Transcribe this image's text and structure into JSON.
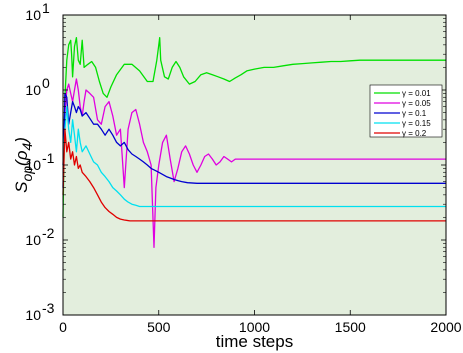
{
  "chart_data": {
    "type": "line",
    "title": "",
    "xlabel": "time steps",
    "ylabel": "S_op(ρ_4)",
    "ylabel_parts": {
      "S": "S",
      "sub": "op",
      "arg": "(ρ",
      "argsub": "4",
      "close": ")"
    },
    "xlim": [
      0,
      2000
    ],
    "ylim": [
      0.001,
      10
    ],
    "yscale": "log",
    "xticks": [
      0,
      500,
      1000,
      1500,
      2000
    ],
    "xtick_labels": [
      "0",
      "500",
      "1000",
      "1500",
      "2000"
    ],
    "yticks": [
      0.001,
      0.01,
      0.1,
      1,
      10
    ],
    "ytick_labels": [
      {
        "base": "10",
        "exp": "-3"
      },
      {
        "base": "10",
        "exp": "-2"
      },
      {
        "base": "10",
        "exp": "-1"
      },
      {
        "base": "10",
        "exp": "0"
      },
      {
        "base": "10",
        "exp": "1"
      }
    ],
    "grid": false,
    "background": "#e3eedd",
    "legend_position": "right",
    "series": [
      {
        "name": "γ = 0.01",
        "color": "#00e000",
        "points": [
          [
            0,
            0.02
          ],
          [
            10,
            0.8
          ],
          [
            20,
            2.5
          ],
          [
            30,
            4.0
          ],
          [
            40,
            4.6
          ],
          [
            45,
            3.0
          ],
          [
            50,
            1.5
          ],
          [
            60,
            3.8
          ],
          [
            70,
            5.0
          ],
          [
            80,
            2.5
          ],
          [
            90,
            2.2
          ],
          [
            100,
            4.6
          ],
          [
            110,
            2.0
          ],
          [
            130,
            2.2
          ],
          [
            150,
            2.4
          ],
          [
            170,
            2.0
          ],
          [
            190,
            1.3
          ],
          [
            210,
            0.9
          ],
          [
            230,
            0.8
          ],
          [
            250,
            1.1
          ],
          [
            280,
            1.6
          ],
          [
            320,
            2.2
          ],
          [
            360,
            2.2
          ],
          [
            400,
            1.8
          ],
          [
            440,
            1.3
          ],
          [
            470,
            1.3
          ],
          [
            490,
            2.5
          ],
          [
            500,
            4.0
          ],
          [
            505,
            5.0
          ],
          [
            510,
            2.5
          ],
          [
            530,
            1.5
          ],
          [
            550,
            1.4
          ],
          [
            570,
            2.0
          ],
          [
            590,
            2.4
          ],
          [
            610,
            2.0
          ],
          [
            630,
            1.5
          ],
          [
            660,
            1.2
          ],
          [
            690,
            1.3
          ],
          [
            720,
            1.6
          ],
          [
            750,
            1.7
          ],
          [
            780,
            1.6
          ],
          [
            810,
            1.5
          ],
          [
            840,
            1.4
          ],
          [
            870,
            1.3
          ],
          [
            900,
            1.45
          ],
          [
            930,
            1.6
          ],
          [
            960,
            1.8
          ],
          [
            1000,
            1.9
          ],
          [
            1050,
            2.0
          ],
          [
            1100,
            2.0
          ],
          [
            1150,
            2.1
          ],
          [
            1200,
            2.2
          ],
          [
            1250,
            2.25
          ],
          [
            1300,
            2.3
          ],
          [
            1350,
            2.35
          ],
          [
            1400,
            2.4
          ],
          [
            1450,
            2.4
          ],
          [
            1500,
            2.45
          ],
          [
            1550,
            2.5
          ],
          [
            1600,
            2.5
          ],
          [
            1650,
            2.5
          ],
          [
            1700,
            2.5
          ],
          [
            1750,
            2.5
          ],
          [
            1800,
            2.5
          ],
          [
            1850,
            2.5
          ],
          [
            1900,
            2.5
          ],
          [
            1950,
            2.5
          ],
          [
            2000,
            2.5
          ]
        ]
      },
      {
        "name": "γ = 0.05",
        "color": "#e000e0",
        "points": [
          [
            0,
            0.1
          ],
          [
            10,
            0.5
          ],
          [
            20,
            1.0
          ],
          [
            30,
            1.2
          ],
          [
            40,
            0.9
          ],
          [
            50,
            0.7
          ],
          [
            60,
            1.0
          ],
          [
            70,
            1.4
          ],
          [
            80,
            1.0
          ],
          [
            90,
            0.6
          ],
          [
            100,
            0.45
          ],
          [
            110,
            0.7
          ],
          [
            120,
            1.0
          ],
          [
            140,
            0.9
          ],
          [
            160,
            0.8
          ],
          [
            180,
            0.4
          ],
          [
            200,
            0.35
          ],
          [
            220,
            0.6
          ],
          [
            240,
            0.7
          ],
          [
            260,
            0.45
          ],
          [
            280,
            0.25
          ],
          [
            300,
            0.3
          ],
          [
            320,
            0.05
          ],
          [
            340,
            0.3
          ],
          [
            360,
            0.5
          ],
          [
            380,
            0.55
          ],
          [
            400,
            0.35
          ],
          [
            420,
            0.2
          ],
          [
            440,
            0.15
          ],
          [
            460,
            0.1
          ],
          [
            475,
            0.008
          ],
          [
            485,
            0.05
          ],
          [
            500,
            0.1
          ],
          [
            520,
            0.2
          ],
          [
            540,
            0.25
          ],
          [
            560,
            0.12
          ],
          [
            580,
            0.06
          ],
          [
            600,
            0.09
          ],
          [
            620,
            0.15
          ],
          [
            640,
            0.18
          ],
          [
            660,
            0.14
          ],
          [
            680,
            0.1
          ],
          [
            700,
            0.08
          ],
          [
            720,
            0.1
          ],
          [
            740,
            0.13
          ],
          [
            760,
            0.14
          ],
          [
            780,
            0.12
          ],
          [
            800,
            0.1
          ],
          [
            820,
            0.11
          ],
          [
            840,
            0.13
          ],
          [
            860,
            0.12
          ],
          [
            880,
            0.11
          ],
          [
            900,
            0.12
          ],
          [
            1000,
            0.12
          ],
          [
            1100,
            0.12
          ],
          [
            1200,
            0.12
          ],
          [
            1300,
            0.12
          ],
          [
            1400,
            0.12
          ],
          [
            1500,
            0.12
          ],
          [
            1600,
            0.12
          ],
          [
            1700,
            0.12
          ],
          [
            1800,
            0.12
          ],
          [
            1900,
            0.12
          ],
          [
            2000,
            0.12
          ]
        ]
      },
      {
        "name": "γ = 0.1",
        "color": "#0000d0",
        "points": [
          [
            0,
            0.05
          ],
          [
            10,
            0.9
          ],
          [
            20,
            0.8
          ],
          [
            30,
            0.35
          ],
          [
            40,
            0.5
          ],
          [
            50,
            0.7
          ],
          [
            60,
            0.6
          ],
          [
            70,
            0.5
          ],
          [
            80,
            0.6
          ],
          [
            90,
            0.55
          ],
          [
            100,
            0.45
          ],
          [
            120,
            0.5
          ],
          [
            140,
            0.42
          ],
          [
            160,
            0.35
          ],
          [
            180,
            0.35
          ],
          [
            200,
            0.3
          ],
          [
            220,
            0.25
          ],
          [
            240,
            0.3
          ],
          [
            260,
            0.25
          ],
          [
            280,
            0.2
          ],
          [
            300,
            0.18
          ],
          [
            320,
            0.2
          ],
          [
            340,
            0.16
          ],
          [
            360,
            0.14
          ],
          [
            380,
            0.13
          ],
          [
            400,
            0.12
          ],
          [
            420,
            0.11
          ],
          [
            440,
            0.1
          ],
          [
            460,
            0.09
          ],
          [
            480,
            0.085
          ],
          [
            500,
            0.08
          ],
          [
            520,
            0.075
          ],
          [
            540,
            0.07
          ],
          [
            560,
            0.067
          ],
          [
            580,
            0.064
          ],
          [
            600,
            0.062
          ],
          [
            620,
            0.06
          ],
          [
            650,
            0.058
          ],
          [
            700,
            0.057
          ],
          [
            800,
            0.057
          ],
          [
            1000,
            0.057
          ],
          [
            1200,
            0.057
          ],
          [
            1400,
            0.057
          ],
          [
            1600,
            0.057
          ],
          [
            1800,
            0.057
          ],
          [
            2000,
            0.057
          ]
        ]
      },
      {
        "name": "γ = 0.15",
        "color": "#00e0f0",
        "points": [
          [
            0,
            0.1
          ],
          [
            10,
            0.3
          ],
          [
            20,
            0.6
          ],
          [
            30,
            0.3
          ],
          [
            40,
            0.2
          ],
          [
            50,
            0.4
          ],
          [
            60,
            0.25
          ],
          [
            70,
            0.15
          ],
          [
            80,
            0.3
          ],
          [
            90,
            0.2
          ],
          [
            100,
            0.15
          ],
          [
            120,
            0.18
          ],
          [
            140,
            0.14
          ],
          [
            160,
            0.11
          ],
          [
            180,
            0.1
          ],
          [
            200,
            0.08
          ],
          [
            220,
            0.07
          ],
          [
            240,
            0.06
          ],
          [
            260,
            0.05
          ],
          [
            280,
            0.045
          ],
          [
            300,
            0.04
          ],
          [
            320,
            0.035
          ],
          [
            340,
            0.032
          ],
          [
            360,
            0.03
          ],
          [
            380,
            0.029
          ],
          [
            400,
            0.028
          ],
          [
            450,
            0.028
          ],
          [
            500,
            0.028
          ],
          [
            600,
            0.028
          ],
          [
            800,
            0.028
          ],
          [
            1000,
            0.028
          ],
          [
            1200,
            0.028
          ],
          [
            1400,
            0.028
          ],
          [
            1600,
            0.028
          ],
          [
            1800,
            0.028
          ],
          [
            2000,
            0.028
          ]
        ]
      },
      {
        "name": "γ = 0.2",
        "color": "#e00000",
        "points": [
          [
            0,
            0.04
          ],
          [
            10,
            0.3
          ],
          [
            20,
            0.15
          ],
          [
            30,
            0.2
          ],
          [
            40,
            0.12
          ],
          [
            50,
            0.15
          ],
          [
            60,
            0.1
          ],
          [
            70,
            0.13
          ],
          [
            80,
            0.09
          ],
          [
            90,
            0.1
          ],
          [
            100,
            0.08
          ],
          [
            120,
            0.07
          ],
          [
            140,
            0.06
          ],
          [
            160,
            0.05
          ],
          [
            180,
            0.04
          ],
          [
            200,
            0.032
          ],
          [
            220,
            0.027
          ],
          [
            240,
            0.024
          ],
          [
            260,
            0.022
          ],
          [
            280,
            0.02
          ],
          [
            300,
            0.019
          ],
          [
            320,
            0.0185
          ],
          [
            350,
            0.018
          ],
          [
            400,
            0.018
          ],
          [
            500,
            0.018
          ],
          [
            700,
            0.018
          ],
          [
            1000,
            0.018
          ],
          [
            1200,
            0.018
          ],
          [
            1400,
            0.018
          ],
          [
            1600,
            0.018
          ],
          [
            1800,
            0.018
          ],
          [
            2000,
            0.018
          ]
        ]
      }
    ]
  }
}
